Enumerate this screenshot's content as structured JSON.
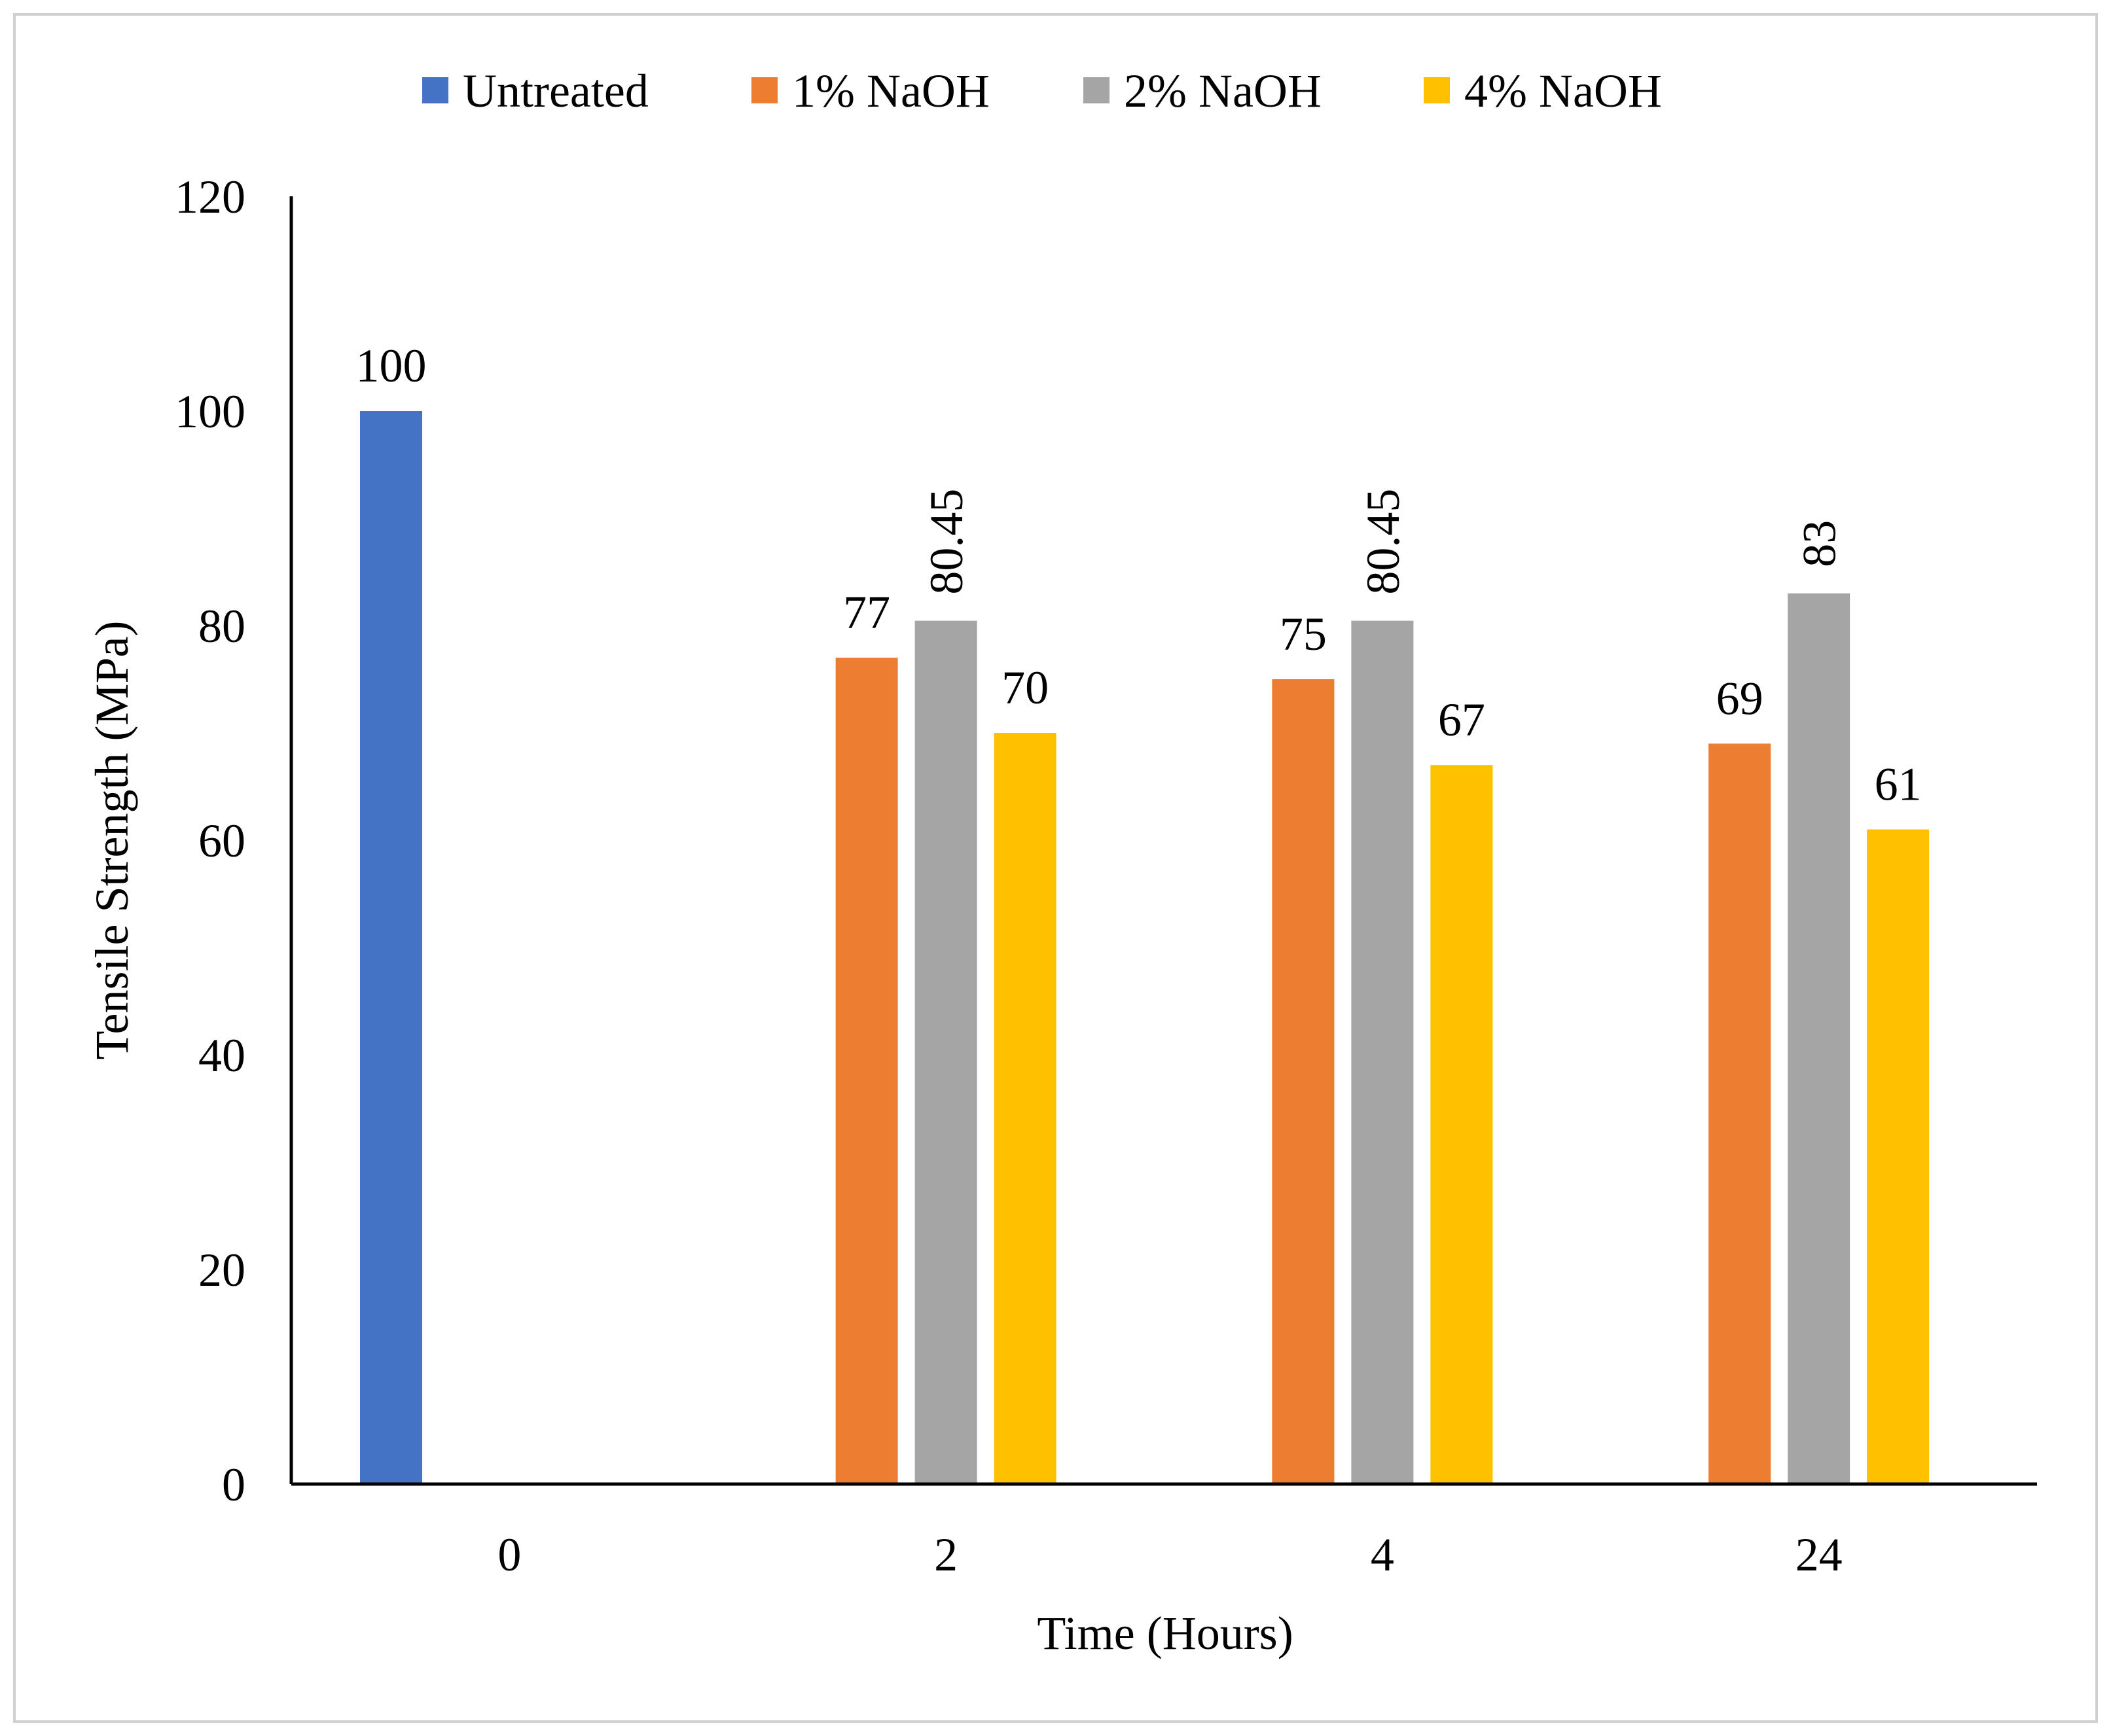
{
  "chart_data": {
    "type": "bar",
    "title": "",
    "xlabel": "Time (Hours)",
    "ylabel": "Tensile Strength (MPa)",
    "ylim": [
      0,
      120
    ],
    "yticks": [
      "0",
      "20",
      "40",
      "60",
      "80",
      "100",
      "120"
    ],
    "categories": [
      "0",
      "2",
      "4",
      "24"
    ],
    "series": [
      {
        "name": "Untreated",
        "color": "#4472C4",
        "values": [
          100,
          null,
          null,
          null
        ],
        "labels": [
          "100",
          "",
          "",
          ""
        ]
      },
      {
        "name": "1% NaOH",
        "color": "#ED7D31",
        "values": [
          null,
          77,
          75,
          69
        ],
        "labels": [
          "",
          "77",
          "75",
          "69"
        ]
      },
      {
        "name": "2% NaOH",
        "color": "#A5A5A5",
        "values": [
          null,
          80.45,
          80.45,
          83
        ],
        "labels": [
          "",
          "80.45",
          "80.45",
          "83"
        ]
      },
      {
        "name": "4% NaOH",
        "color": "#FFC000",
        "values": [
          null,
          70,
          67,
          61
        ],
        "labels": [
          "",
          "70",
          "67",
          "61"
        ]
      }
    ],
    "legend": "top",
    "grid": false
  }
}
